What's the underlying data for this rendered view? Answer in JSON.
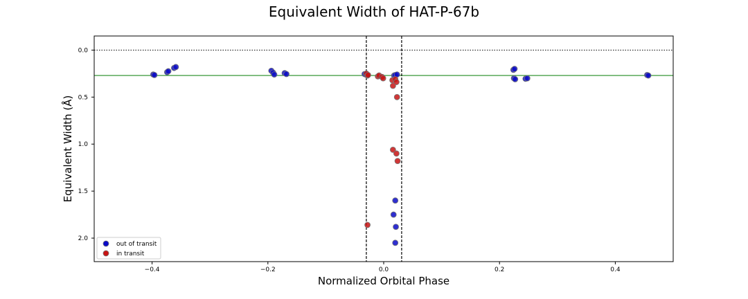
{
  "chart_data": {
    "type": "scatter",
    "title": "Equivalent Width of HAT-P-67b",
    "xlabel": "Normalized Orbital Phase",
    "ylabel": "Equivalent Width (Å)",
    "xlim": [
      -0.5,
      0.5
    ],
    "ylim": [
      2.25,
      -0.15
    ],
    "y_inverted": true,
    "x_ticks": [
      -0.4,
      -0.2,
      0.0,
      0.2,
      0.4
    ],
    "x_tick_labels": [
      "−0.4",
      "−0.2",
      "0.0",
      "0.2",
      "0.4"
    ],
    "y_ticks": [
      0.0,
      0.5,
      1.0,
      1.5,
      2.0
    ],
    "y_tick_labels": [
      "0.0",
      "0.5",
      "1.0",
      "1.5",
      "2.0"
    ],
    "grid": false,
    "legend_position": "lower-left",
    "reference_lines": {
      "zero_level": 0.0,
      "mean_level": 0.27,
      "transit_start": -0.03,
      "transit_end": 0.031
    },
    "series": [
      {
        "name": "out of transit",
        "color": "#0a0ac8",
        "points": [
          [
            -0.398,
            0.26
          ],
          [
            -0.396,
            0.265
          ],
          [
            -0.374,
            0.235
          ],
          [
            -0.372,
            0.225
          ],
          [
            -0.362,
            0.19
          ],
          [
            -0.359,
            0.18
          ],
          [
            -0.194,
            0.22
          ],
          [
            -0.191,
            0.24
          ],
          [
            -0.189,
            0.26
          ],
          [
            -0.171,
            0.245
          ],
          [
            -0.168,
            0.255
          ],
          [
            -0.033,
            0.255
          ],
          [
            -0.031,
            0.26
          ],
          [
            -0.028,
            0.27
          ],
          [
            0.018,
            0.27
          ],
          [
            0.02,
            0.265
          ],
          [
            0.023,
            0.26
          ],
          [
            0.224,
            0.21
          ],
          [
            0.226,
            0.2
          ],
          [
            0.225,
            0.3
          ],
          [
            0.227,
            0.31
          ],
          [
            0.245,
            0.305
          ],
          [
            0.248,
            0.3
          ],
          [
            0.455,
            0.265
          ],
          [
            0.457,
            0.27
          ],
          [
            0.02,
            1.6
          ],
          [
            0.017,
            1.75
          ],
          [
            0.021,
            1.88
          ],
          [
            0.02,
            2.05
          ]
        ]
      },
      {
        "name": "in transit",
        "color": "#c81414",
        "points": [
          [
            -0.03,
            0.25
          ],
          [
            -0.028,
            0.27
          ],
          [
            -0.027,
            0.265
          ],
          [
            -0.01,
            0.28
          ],
          [
            -0.008,
            0.27
          ],
          [
            -0.003,
            0.285
          ],
          [
            -0.001,
            0.3
          ],
          [
            0.015,
            0.32
          ],
          [
            0.016,
            0.38
          ],
          [
            0.02,
            0.31
          ],
          [
            0.022,
            0.34
          ],
          [
            0.023,
            0.5
          ],
          [
            0.016,
            1.06
          ],
          [
            0.022,
            1.1
          ],
          [
            0.024,
            1.18
          ],
          [
            -0.028,
            1.86
          ]
        ]
      }
    ]
  }
}
